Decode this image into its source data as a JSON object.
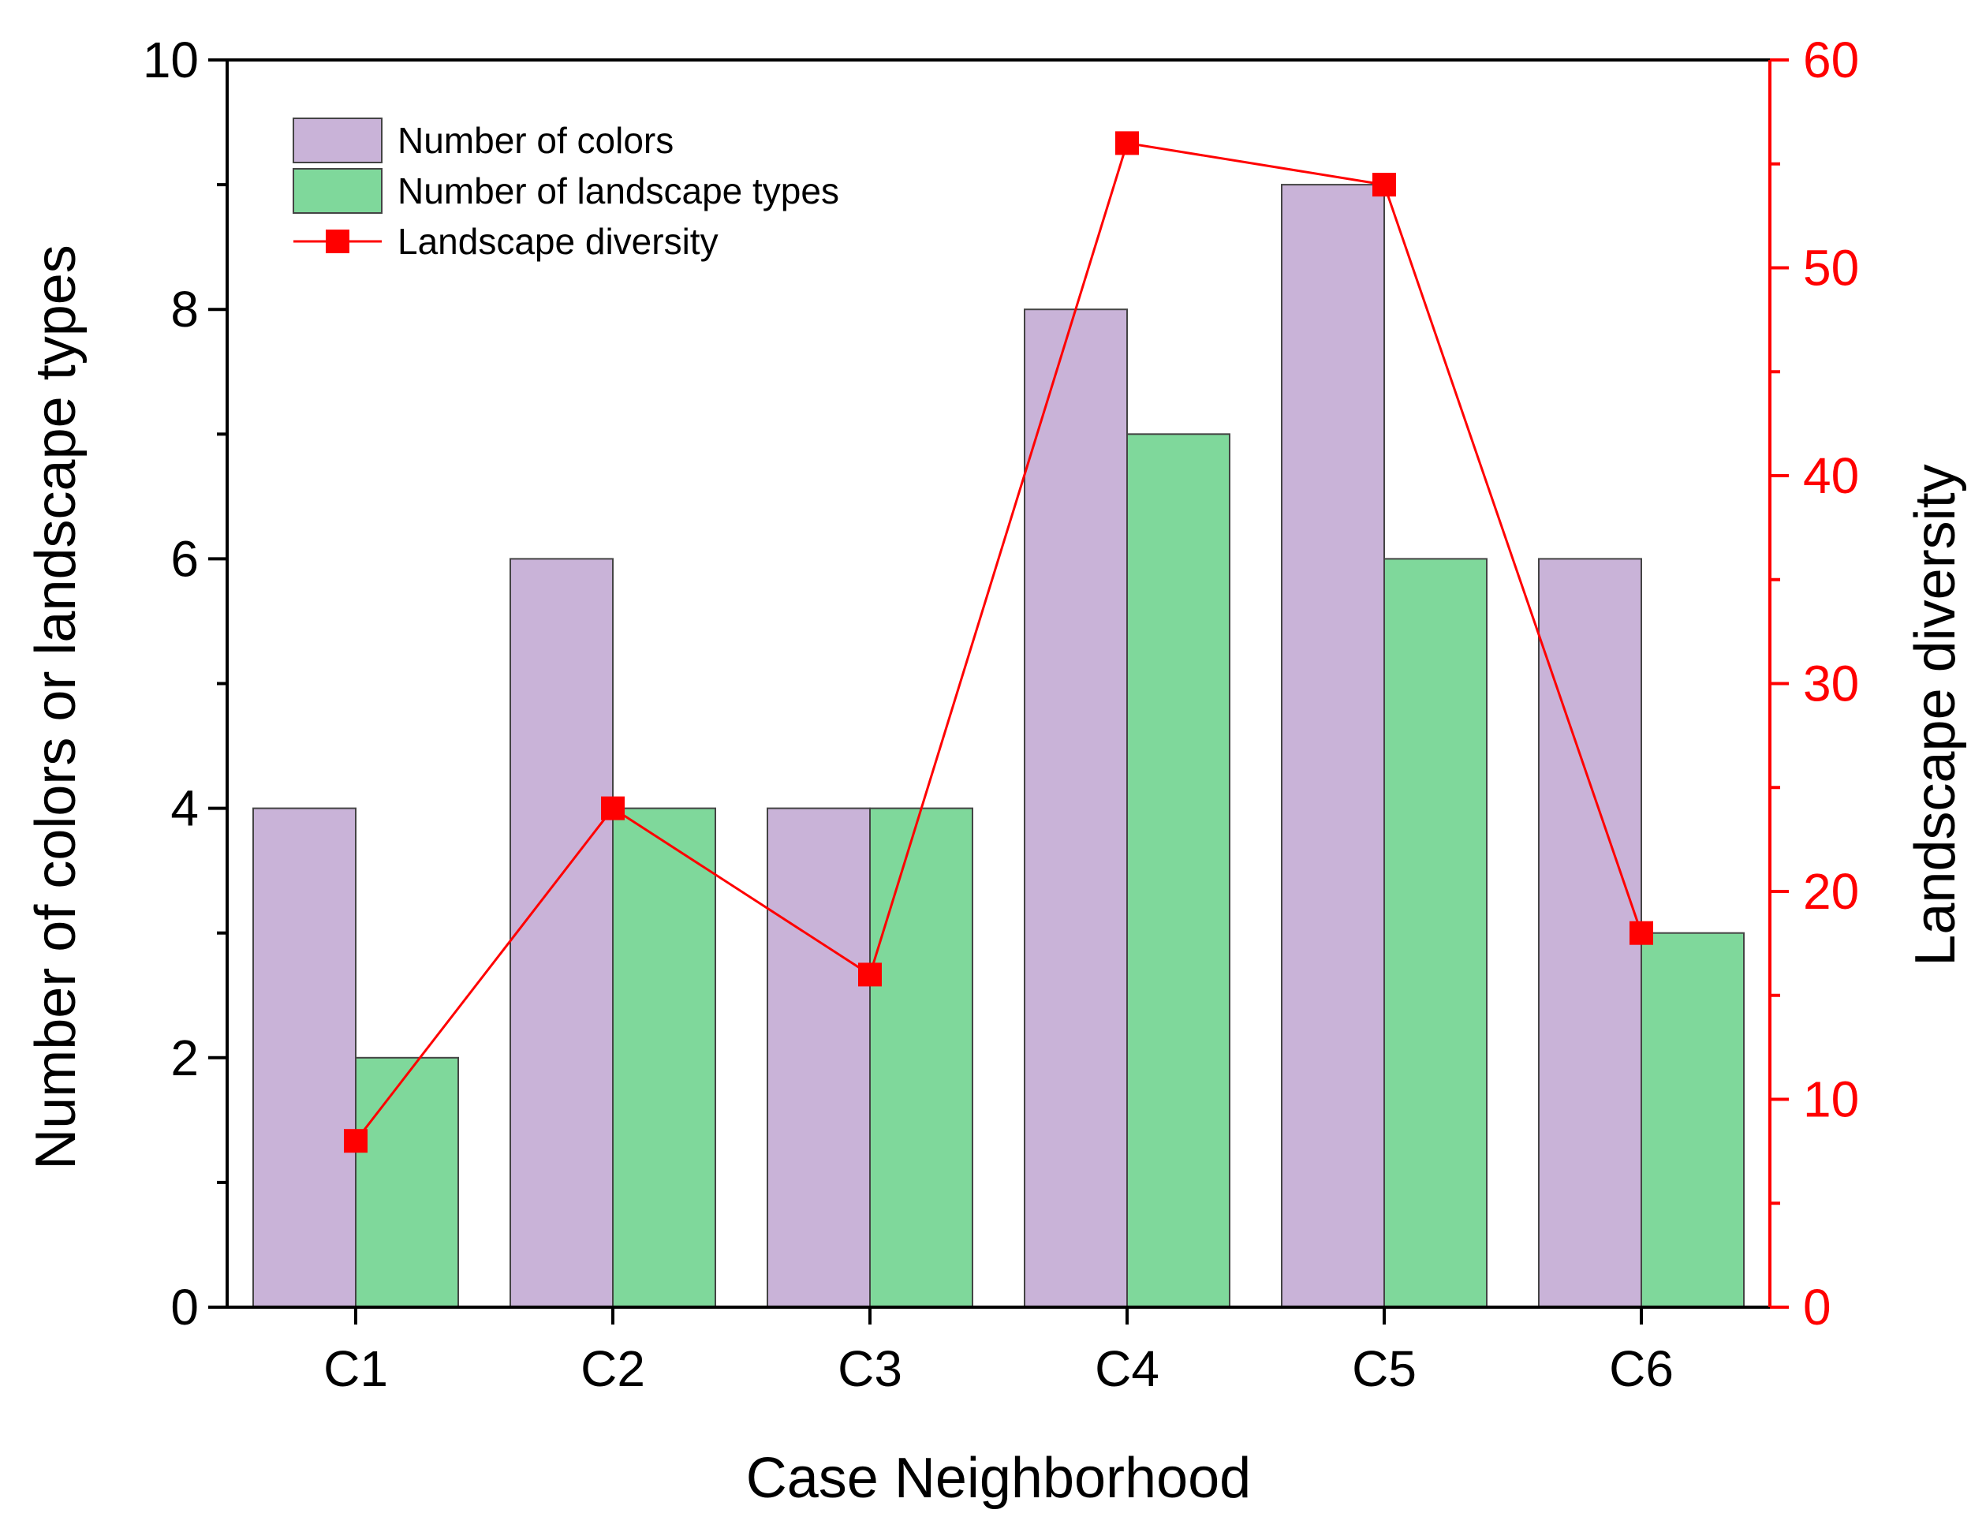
{
  "chart_data": {
    "type": "bar",
    "categories": [
      "C1",
      "C2",
      "C3",
      "C4",
      "C5",
      "C6"
    ],
    "series": [
      {
        "name": "Number of colors",
        "kind": "bar",
        "axis": "left",
        "color": "#c9b3d8",
        "values": [
          4,
          6,
          4,
          8,
          9,
          6
        ]
      },
      {
        "name": "Number of landscape types",
        "kind": "bar",
        "axis": "left",
        "color": "#7fd89b",
        "values": [
          2,
          4,
          4,
          7,
          6,
          3
        ]
      },
      {
        "name": "Landscape diversity",
        "kind": "line",
        "axis": "right",
        "color": "#ff0000",
        "values": [
          8,
          24,
          16,
          56,
          54,
          18
        ]
      }
    ],
    "xlabel": "Case Neighborhood",
    "ylabel": "Number of colors or landscape types",
    "y2label": "Landscape diversity",
    "ylim": [
      0,
      10
    ],
    "y2lim": [
      0,
      60
    ],
    "yticks": [
      "0",
      "2",
      "4",
      "6",
      "8",
      "10"
    ],
    "y2ticks": [
      "0",
      "10",
      "20",
      "30",
      "40",
      "50",
      "60"
    ],
    "legend_position": "top-left"
  }
}
